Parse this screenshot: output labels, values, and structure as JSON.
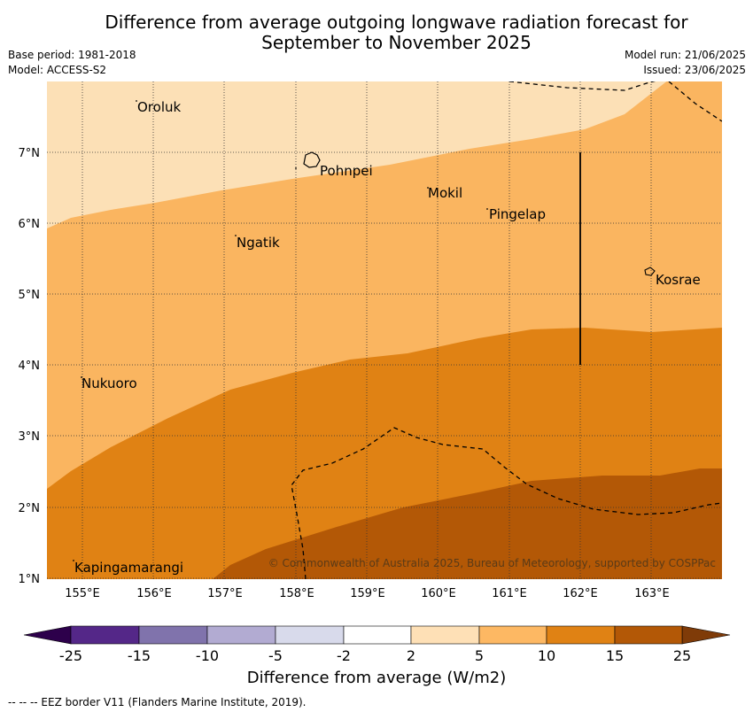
{
  "title_line1": "Difference from average outgoing longwave radiation forecast for",
  "title_line2": "September to November 2025",
  "meta_left": [
    "Base period: 1981-2018",
    "Model: ACCESS-S2"
  ],
  "meta_right": [
    "Model run: 21/06/2025",
    "Issued: 23/06/2025"
  ],
  "map": {
    "lon_labels": [
      "155°E",
      "156°E",
      "157°E",
      "158°E",
      "159°E",
      "160°E",
      "161°E",
      "162°E",
      "163°E"
    ],
    "lat_labels": [
      "7°N",
      "6°N",
      "5°N",
      "4°N",
      "3°N",
      "2°N",
      "1°N"
    ],
    "places": [
      {
        "name": "Oroluk"
      },
      {
        "name": "Pohnpei"
      },
      {
        "name": "Mokil"
      },
      {
        "name": "Pingelap"
      },
      {
        "name": "Ngatik"
      },
      {
        "name": "Kosrae"
      },
      {
        "name": "Nukuoro"
      },
      {
        "name": "Kapingamarangi"
      }
    ],
    "bands": [
      {
        "range": "2 to 5",
        "color": "#fce0b6"
      },
      {
        "range": "5 to 10",
        "color": "#fab560"
      },
      {
        "range": "10 to 15",
        "color": "#e08214"
      },
      {
        "range": "15 to 25",
        "color": "#b35806"
      }
    ],
    "copyright": "© Commonwealth of Australia 2025, Bureau of Meteorology, supported by COSPPac"
  },
  "colorbar": {
    "ticks": [
      "-25",
      "-15",
      "-10",
      "-5",
      "-2",
      "2",
      "5",
      "10",
      "15",
      "25"
    ],
    "colors": [
      "#542788",
      "#8073ac",
      "#b2abd2",
      "#d8daeb",
      "#ffffff",
      "#fee0b6",
      "#fdb863",
      "#e08214",
      "#b35806"
    ],
    "low_arrow_color": "#2d004b",
    "high_arrow_color": "#7f3b08",
    "title": "Difference from average (W/m2)"
  },
  "footer": "--  --  -- EEZ border V11 (Flanders Marine Institute, 2019)."
}
